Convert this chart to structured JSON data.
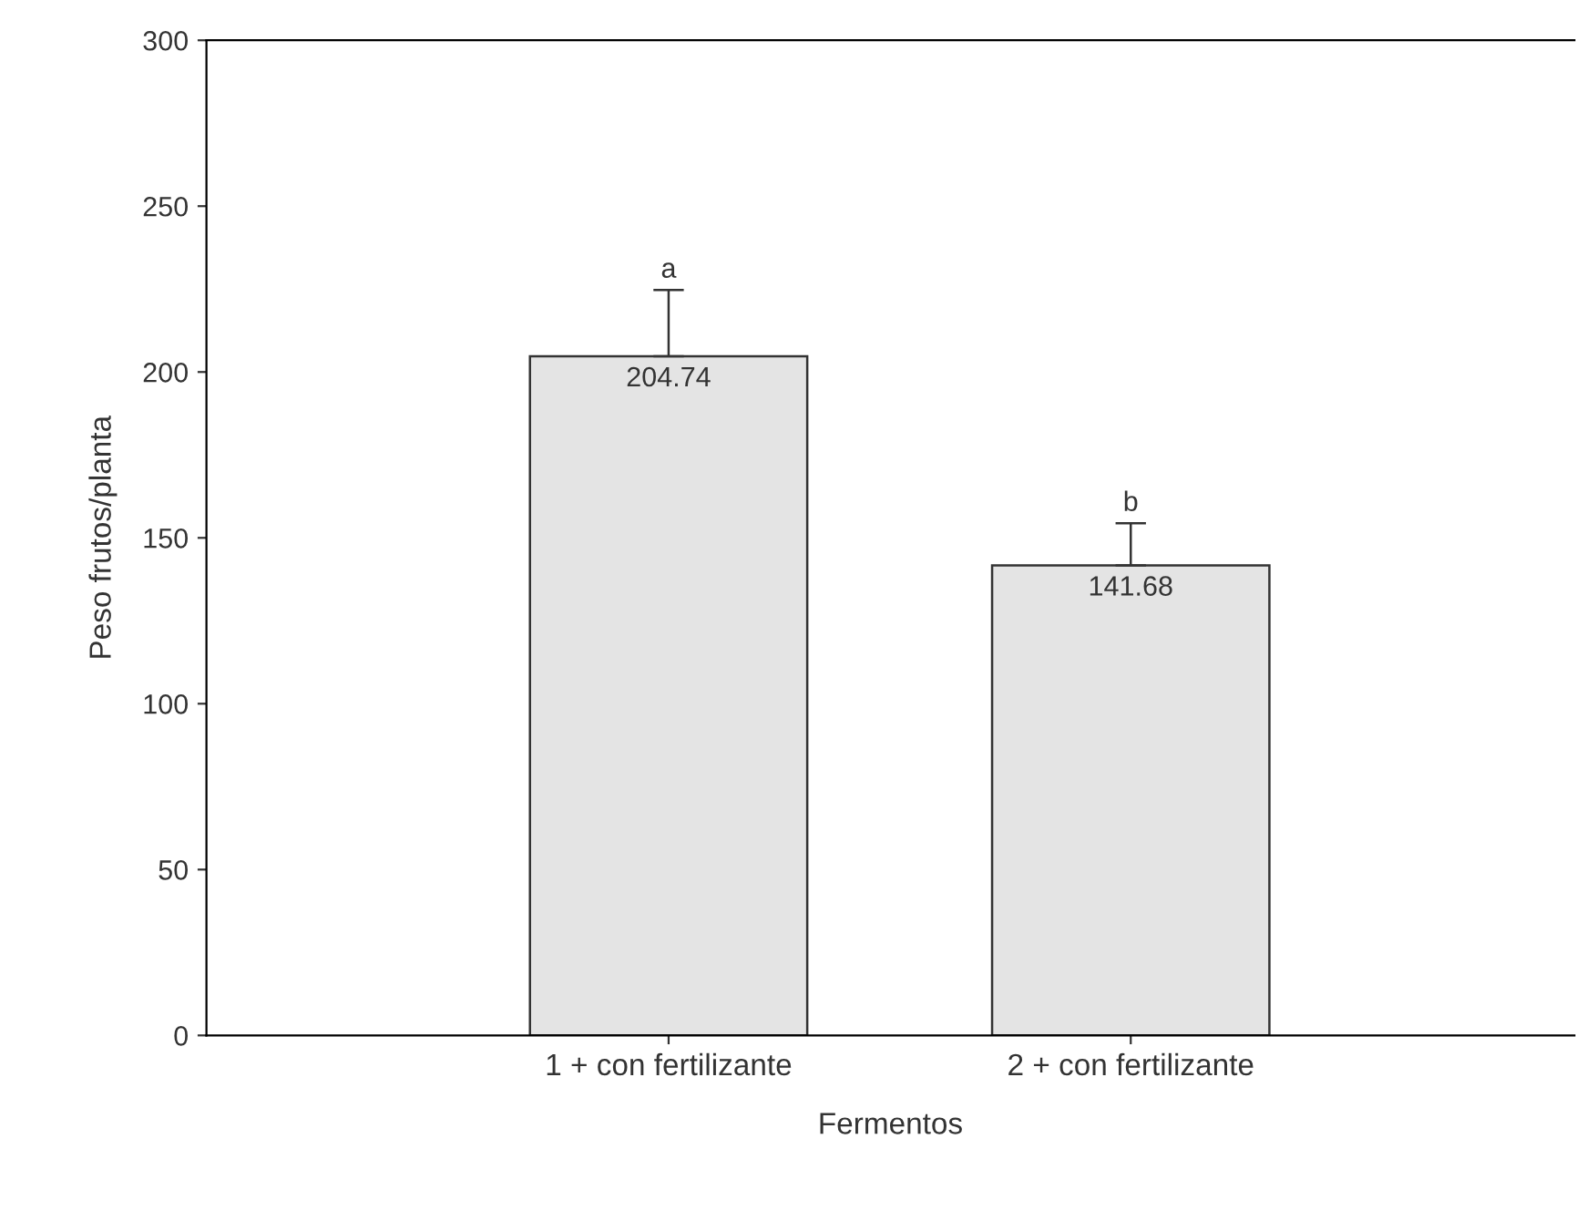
{
  "chart_data": {
    "type": "bar",
    "xlabel": "Fermentos",
    "ylabel": "Peso frutos/planta",
    "categories": [
      "1 + con fertilizante",
      "2 + con fertilizante"
    ],
    "values": [
      204.74,
      141.68
    ],
    "errors": [
      [
        204.74,
        224.7
      ],
      [
        141.68,
        154.4
      ]
    ],
    "color": "#e4e4e4",
    "data_labels": true,
    "annotations": [
      {
        "text": "a",
        "x": "1 + con fertilizante",
        "y": 224.7
      },
      {
        "text": "b",
        "x": "2 + con fertilizante",
        "y": 154.4
      }
    ],
    "ylim": [
      0,
      300
    ],
    "yticks": [
      0,
      50,
      100,
      150,
      200,
      250,
      300
    ],
    "grid": false,
    "legend": false
  }
}
